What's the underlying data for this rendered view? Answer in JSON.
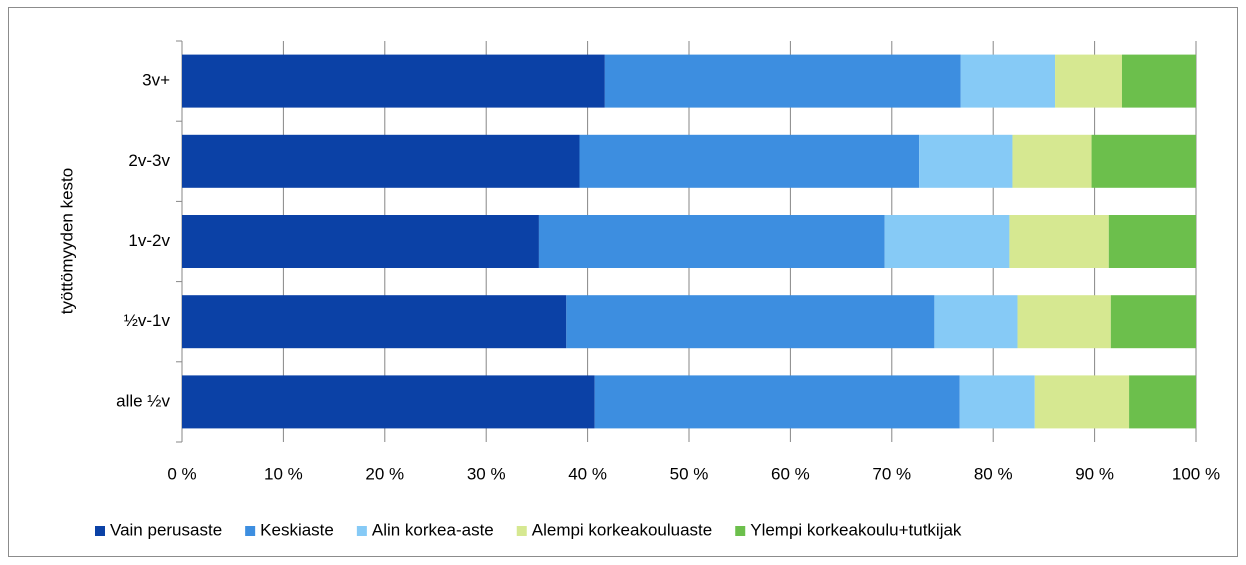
{
  "chart_data": {
    "type": "bar",
    "orientation": "horizontal",
    "stacked": true,
    "y_label": "työttömyyden kesto",
    "categories": [
      "3v+",
      "2v-3v",
      "1v-2v",
      "½v-1v",
      "alle ½v"
    ],
    "series": [
      {
        "name": "Vain perusaste",
        "color": "#0b41a6",
        "values": [
          41.7,
          39.2,
          35.2,
          37.9,
          40.7
        ]
      },
      {
        "name": "Keskiaste",
        "color": "#3d8ee0",
        "values": [
          35.1,
          33.5,
          34.1,
          36.3,
          36.0
        ]
      },
      {
        "name": "Alin korkea-aste",
        "color": "#86caf6",
        "values": [
          9.3,
          9.2,
          12.3,
          8.2,
          7.4
        ]
      },
      {
        "name": "Alempi korkeakouluaste",
        "color": "#d6e891",
        "values": [
          6.6,
          7.8,
          9.8,
          9.2,
          9.3
        ]
      },
      {
        "name": "Ylempi korkeakoulu+tutkijak",
        "color": "#6cbf4c",
        "values": [
          7.3,
          10.3,
          8.6,
          8.4,
          6.6
        ]
      }
    ],
    "xlim": [
      0,
      100
    ],
    "xticks": [
      {
        "value": 0,
        "label": "0 %"
      },
      {
        "value": 10,
        "label": "10 %"
      },
      {
        "value": 20,
        "label": "20 %"
      },
      {
        "value": 30,
        "label": "30 %"
      },
      {
        "value": 40,
        "label": "40 %"
      },
      {
        "value": 50,
        "label": "50 %"
      },
      {
        "value": 60,
        "label": "60 %"
      },
      {
        "value": 70,
        "label": "70 %"
      },
      {
        "value": 80,
        "label": "80 %"
      },
      {
        "value": 90,
        "label": "90 %"
      },
      {
        "value": 100,
        "label": "100 %"
      }
    ],
    "grid": true,
    "legend": "bottom"
  }
}
